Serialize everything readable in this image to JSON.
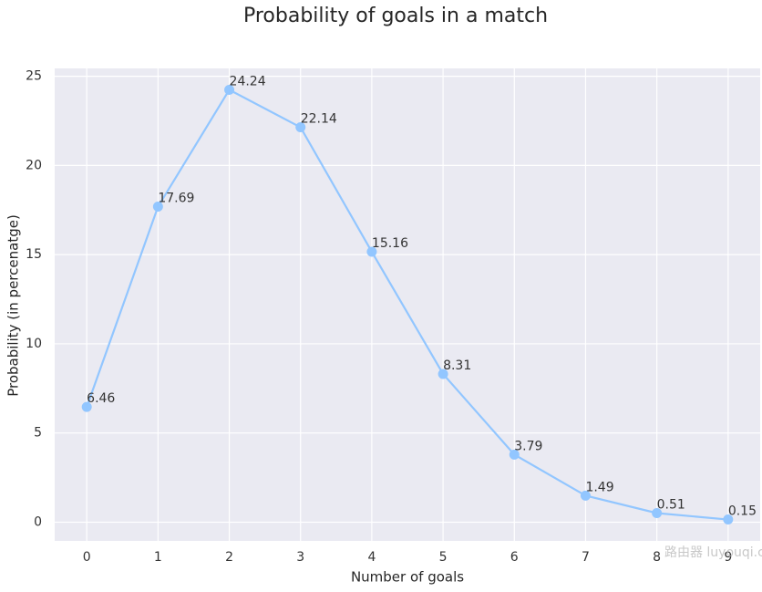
{
  "chart_data": {
    "type": "line",
    "title": "Probability of goals in a match",
    "x_label": "Number of goals",
    "y_label": "Probability (in percenatge)",
    "x": [
      0,
      1,
      2,
      3,
      4,
      5,
      6,
      7,
      8,
      9
    ],
    "series": [
      {
        "name": "Probability",
        "color": "#92c6ff",
        "values": [
          6.46,
          17.69,
          24.24,
          22.14,
          15.16,
          8.31,
          3.79,
          1.49,
          0.51,
          0.15
        ]
      }
    ],
    "xlim": [
      -0.45,
      9.45
    ],
    "xticks": [
      0,
      1,
      2,
      3,
      4,
      5,
      6,
      7,
      8,
      9
    ],
    "ylim": [
      -1.05,
      25.44
    ],
    "yticks": [
      0,
      5,
      10,
      15,
      20,
      25
    ],
    "grid": true,
    "data_labels": true
  },
  "watermark": "路由器 luyouqi.com"
}
